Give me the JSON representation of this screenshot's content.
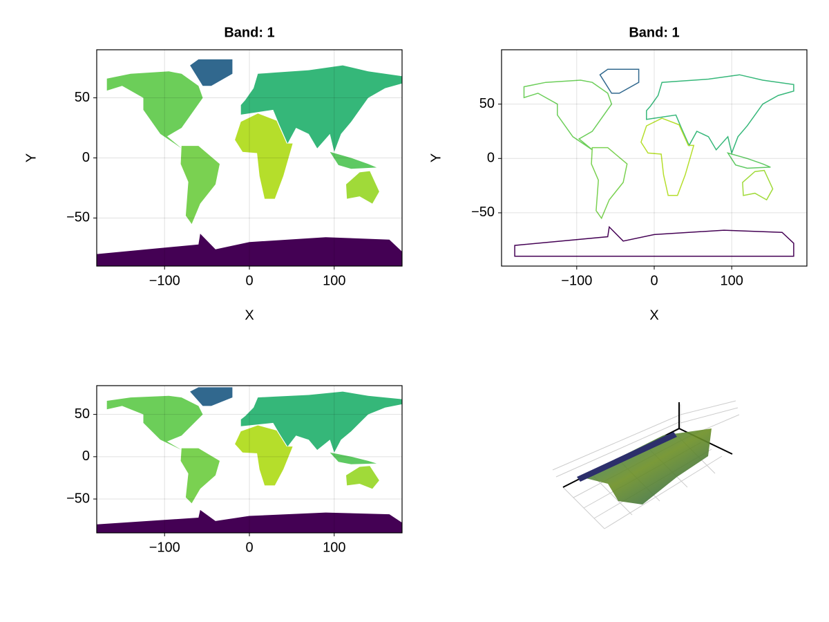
{
  "chart_data": [
    {
      "type": "heatmap",
      "title": "Band: 1",
      "xlabel": "X",
      "ylabel": "Y",
      "xlim": [
        -180,
        180
      ],
      "ylim": [
        -90,
        90
      ],
      "xticks": [
        {
          "value": -100,
          "label": "−100"
        },
        0,
        100
      ],
      "yticks": [
        {
          "value": -50,
          "label": "−50"
        },
        0,
        50
      ],
      "grid": true
    },
    {
      "type": "contour",
      "title": "Band: 1",
      "xlabel": "X",
      "ylabel": "Y",
      "xlim": [
        -197,
        197
      ],
      "ylim": [
        -99,
        100
      ],
      "xticks": [
        {
          "value": -100,
          "label": "−100"
        },
        0,
        100
      ],
      "yticks": [
        {
          "value": -50,
          "label": "−50"
        },
        0,
        50
      ],
      "grid": true
    },
    {
      "type": "contourf",
      "xlim": [
        -180,
        180
      ],
      "ylim": [
        -90,
        84
      ],
      "xticks": [
        {
          "value": -100,
          "label": "−100"
        },
        0,
        100
      ],
      "yticks": [
        {
          "value": -50,
          "label": "−50"
        },
        0,
        50
      ],
      "grid": true
    },
    {
      "type": "surface"
    }
  ]
}
